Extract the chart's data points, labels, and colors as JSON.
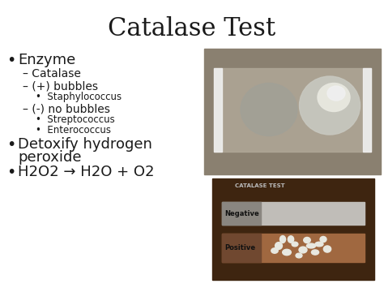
{
  "title": "Catalase Test",
  "title_fontsize": 22,
  "bg_color": "#ffffff",
  "text_color": "#1a1a1a",
  "fig_width": 4.74,
  "fig_height": 3.55,
  "dpi": 100,
  "bullet1": "Enzyme",
  "sub1_1": "– Catalase",
  "sub1_2": "– (+) bubbles",
  "sub1_2_1": "Staphylococcus",
  "sub1_3": "– (-) no bubbles",
  "sub1_3_1": "Streptococcus",
  "sub1_3_2": "Enterococcus",
  "bullet2_line1": "Detoxify hydrogen",
  "bullet2_line2": "peroxide",
  "bullet3": "H2O2 → H2O + O2",
  "img2_title": "CATALASE TEST",
  "img2_neg": "Negative",
  "img2_pos": "Positive",
  "top_photo_bg": "#8a8070",
  "top_photo_slide_bg": "#b0a898",
  "top_photo_slide_light": "#d8d4cc",
  "top_photo_blob1": "#a0a098",
  "top_photo_blob2": "#c8c8c0",
  "top_photo_blob2_bright": "#e8e8e0",
  "bot_photo_bg": "#3e2510",
  "bot_neg_strip": "#c0bdb8",
  "bot_neg_dark": "#8a8680",
  "bot_pos_strip": "#a06840",
  "bot_pos_dark": "#704830",
  "bot_clumps": "#e8e8e0"
}
